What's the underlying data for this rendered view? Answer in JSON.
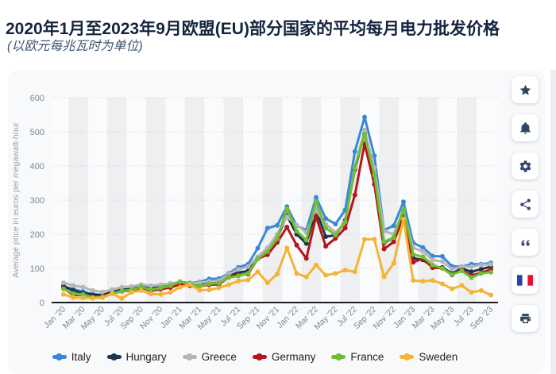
{
  "header": {
    "title": "2020年1月至2023年9月欧盟(EU)部分国家的平均每月电力批发价格",
    "subtitle": "(以欧元每兆瓦时为单位)"
  },
  "sidebar": {
    "buttons": [
      {
        "name": "favorite",
        "icon": "star-icon"
      },
      {
        "name": "notification",
        "icon": "bell-icon"
      },
      {
        "name": "settings",
        "icon": "gear-icon"
      },
      {
        "name": "share",
        "icon": "share-icon"
      },
      {
        "name": "cite",
        "icon": "quote-icon"
      },
      {
        "name": "language-french",
        "icon": "french-flag-icon"
      },
      {
        "name": "print",
        "icon": "printer-icon"
      }
    ]
  },
  "chart_data": {
    "type": "line",
    "title": "",
    "xlabel": "",
    "ylabel": "Average price in euros per megawatt-hour",
    "ylim": [
      0,
      600
    ],
    "ytick_step": 100,
    "grid": "dotted horizontal lines, alternating vertical background bands",
    "legend_position": "bottom",
    "months": [
      "Jan '20",
      "Feb '20",
      "Mar '20",
      "Apr '20",
      "May '20",
      "Jun '20",
      "Jul '20",
      "Aug '20",
      "Sep '20",
      "Oct '20",
      "Nov '20",
      "Dec '20",
      "Jan '21",
      "Feb '21",
      "Mar '21",
      "Apr '21",
      "May '21",
      "Jun '21",
      "Jul '21",
      "Aug '21",
      "Sep '21",
      "Oct '21",
      "Nov '21",
      "Dec '21",
      "Jan '22",
      "Feb '22",
      "Mar '22",
      "Apr '22",
      "May '22",
      "Jun '22",
      "Jul '22",
      "Aug '22",
      "Sep '22",
      "Oct '22",
      "Nov '22",
      "Dec '22",
      "Jan '23",
      "Feb '23",
      "Mar '23",
      "Apr '23",
      "May '23",
      "Jun '23",
      "Jul '23",
      "Aug '23",
      "Sep '23"
    ],
    "x_tick_labels": [
      "Jan '20",
      "Mar '20",
      "May '20",
      "Jul '20",
      "Sep '20",
      "Nov '20",
      "Jan '21",
      "Mar '21",
      "May '21",
      "Jul '21",
      "Sep '21",
      "Nov '21",
      "Jan '22",
      "Mar '22",
      "May '22",
      "Jul '22",
      "Sep '22",
      "Nov '22",
      "Jan '23",
      "Mar '23",
      "May '23",
      "Jul '23",
      "Sep '23"
    ],
    "series": [
      {
        "name": "Italy",
        "color": "#3a87d9",
        "values": [
          48,
          39,
          32,
          25,
          22,
          28,
          38,
          40,
          49,
          44,
          49,
          54,
          61,
          57,
          60,
          69,
          70,
          85,
          103,
          112,
          159,
          218,
          226,
          281,
          225,
          212,
          308,
          246,
          230,
          271,
          442,
          543,
          430,
          212,
          225,
          295,
          175,
          161,
          136,
          135,
          106,
          105,
          112,
          112,
          116
        ]
      },
      {
        "name": "Hungary",
        "color": "#1d3350",
        "values": [
          48,
          35,
          28,
          23,
          22,
          31,
          38,
          39,
          46,
          40,
          45,
          49,
          56,
          51,
          50,
          57,
          59,
          78,
          88,
          92,
          130,
          150,
          190,
          255,
          200,
          173,
          271,
          193,
          197,
          240,
          390,
          495,
          365,
          175,
          190,
          270,
          130,
          125,
          105,
          103,
          85,
          100,
          90,
          98,
          105
        ]
      },
      {
        "name": "Greece",
        "color": "#b4b6b8",
        "values": [
          58,
          50,
          45,
          35,
          31,
          38,
          45,
          47,
          53,
          49,
          52,
          56,
          60,
          55,
          58,
          62,
          64,
          83,
          97,
          105,
          134,
          160,
          200,
          251,
          227,
          205,
          270,
          230,
          205,
          235,
          395,
          505,
          395,
          210,
          200,
          270,
          160,
          150,
          125,
          120,
          98,
          105,
          105,
          110,
          112
        ]
      },
      {
        "name": "Germany",
        "color": "#b6151b",
        "values": [
          42,
          22,
          23,
          17,
          18,
          26,
          33,
          35,
          44,
          34,
          39,
          44,
          53,
          49,
          48,
          52,
          53,
          74,
          81,
          83,
          128,
          140,
          176,
          221,
          168,
          129,
          252,
          165,
          188,
          218,
          315,
          465,
          346,
          157,
          178,
          251,
          118,
          129,
          102,
          101,
          81,
          95,
          79,
          87,
          97
        ]
      },
      {
        "name": "France",
        "color": "#6fbf33",
        "values": [
          40,
          26,
          24,
          15,
          16,
          26,
          34,
          37,
          46,
          37,
          43,
          49,
          61,
          53,
          48,
          55,
          57,
          73,
          78,
          85,
          128,
          149,
          187,
          275,
          209,
          183,
          296,
          218,
          198,
          236,
          398,
          492,
          373,
          178,
          190,
          275,
          141,
          134,
          110,
          100,
          82,
          93,
          73,
          85,
          89
        ]
      },
      {
        "name": "Sweden",
        "color": "#f5b335",
        "values": [
          24,
          15,
          14,
          12,
          14,
          26,
          12,
          30,
          35,
          25,
          24,
          30,
          45,
          52,
          36,
          37,
          43,
          52,
          63,
          66,
          90,
          58,
          83,
          160,
          85,
          75,
          110,
          80,
          85,
          95,
          90,
          185,
          185,
          75,
          115,
          245,
          65,
          62,
          65,
          55,
          40,
          50,
          30,
          35,
          22
        ]
      }
    ],
    "colors": {
      "title_text": "#15243e",
      "subtitle_text": "#3e5371",
      "card_background": "#f8f9fa",
      "band": "#edeff1",
      "gridline": "#c9ccd2",
      "axis_line": "#1b1d21",
      "tick_text": "#7e8591",
      "icon": "#2e4867"
    }
  }
}
